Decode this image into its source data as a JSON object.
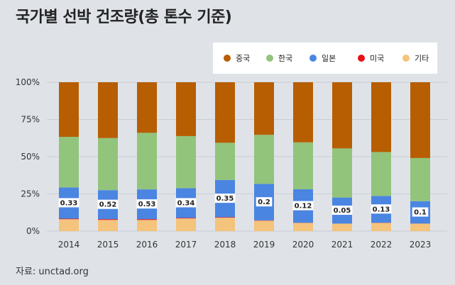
{
  "title": "국가별 선박 건조량(총 톤수 기준)",
  "source": "자료: unctad.org",
  "colors": {
    "china": "#b75e02",
    "korea": "#92c47c",
    "japan": "#4a85e1",
    "usa": "#e8111a",
    "other": "#f4c37c",
    "label_bg": "#ffffff"
  },
  "chart_data": {
    "type": "bar",
    "stacked": true,
    "categories": [
      "2014",
      "2015",
      "2016",
      "2017",
      "2018",
      "2019",
      "2020",
      "2021",
      "2022",
      "2023"
    ],
    "ylim": [
      0,
      100
    ],
    "yticks": [
      "0%",
      "25%",
      "50%",
      "75%",
      "100%"
    ],
    "ytick_values": [
      0,
      25,
      50,
      75,
      100
    ],
    "grid": true,
    "legend_position": "top-right",
    "series": [
      {
        "name": "기타",
        "color_key": "other",
        "values": [
          8,
          7.5,
          7.5,
          8.5,
          9,
          7,
          5.5,
          5,
          5.5,
          5
        ]
      },
      {
        "name": "미국",
        "color_key": "usa",
        "values": [
          0.33,
          0.52,
          0.53,
          0.34,
          0.35,
          0.2,
          0.12,
          0.05,
          0.13,
          0.1
        ]
      },
      {
        "name": "일본",
        "color_key": "japan",
        "values": [
          21,
          19.5,
          20,
          20,
          25,
          24.5,
          22.5,
          17.5,
          18,
          15
        ]
      },
      {
        "name": "한국",
        "color_key": "korea",
        "values": [
          34,
          35,
          38,
          35,
          25,
          33,
          31.5,
          33,
          29.5,
          29
        ]
      },
      {
        "name": "중국",
        "color_key": "china",
        "values": [
          36.67,
          37.48,
          33.97,
          36.16,
          40.65,
          35.3,
          40.38,
          44.45,
          46.87,
          50.9
        ]
      }
    ],
    "data_labels": [
      "0.33",
      "0.52",
      "0.53",
      "0.34",
      "0.35",
      "0.2",
      "0.12",
      "0.05",
      "0.13",
      "0.1"
    ],
    "legend_order": [
      "중국",
      "한국",
      "일본",
      "미국",
      "기타"
    ]
  }
}
